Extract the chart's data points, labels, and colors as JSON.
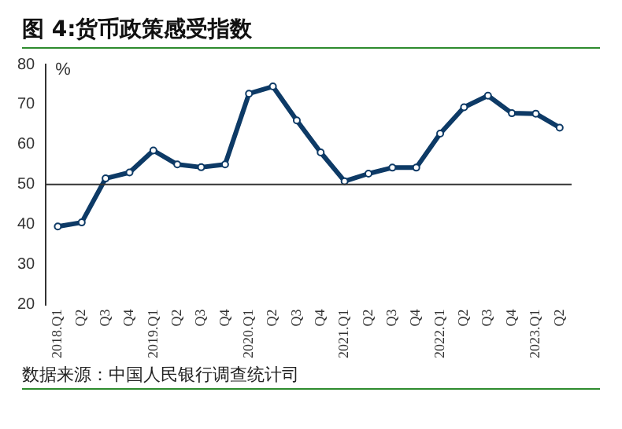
{
  "chart_data": {
    "type": "line",
    "title": "图 4:货币政策感受指数",
    "ylabel": "%",
    "annotations": [
      "数据来源：中国人民银行调查统计司"
    ],
    "categories": [
      "2018.Q1",
      "Q2",
      "Q3",
      "Q4",
      "2019.Q1",
      "Q2",
      "Q3",
      "Q4",
      "2020.Q1",
      "Q2",
      "Q3",
      "Q4",
      "2021.Q1",
      "Q2",
      "Q3",
      "Q4",
      "2022.Q1",
      "Q2",
      "Q3",
      "Q4",
      "2023.Q1",
      "Q2"
    ],
    "series": [
      {
        "color": "#0d3a66",
        "values": [
          39.5,
          40.5,
          51.5,
          53,
          58.5,
          55,
          54.3,
          55,
          72.7,
          74.5,
          66,
          58,
          50.8,
          52.7,
          54.2,
          54.2,
          62.7,
          69.3,
          72.2,
          67.8,
          67.7,
          64.2
        ]
      }
    ],
    "ylim": [
      20,
      80
    ],
    "yticks": [
      20,
      30,
      40,
      50,
      60,
      70,
      80
    ],
    "ref_lines": [
      {
        "axis": "y",
        "value": 50,
        "color": "#333333"
      }
    ],
    "marker": "circle",
    "line_style": "solid",
    "grid": false,
    "legend": false
  }
}
